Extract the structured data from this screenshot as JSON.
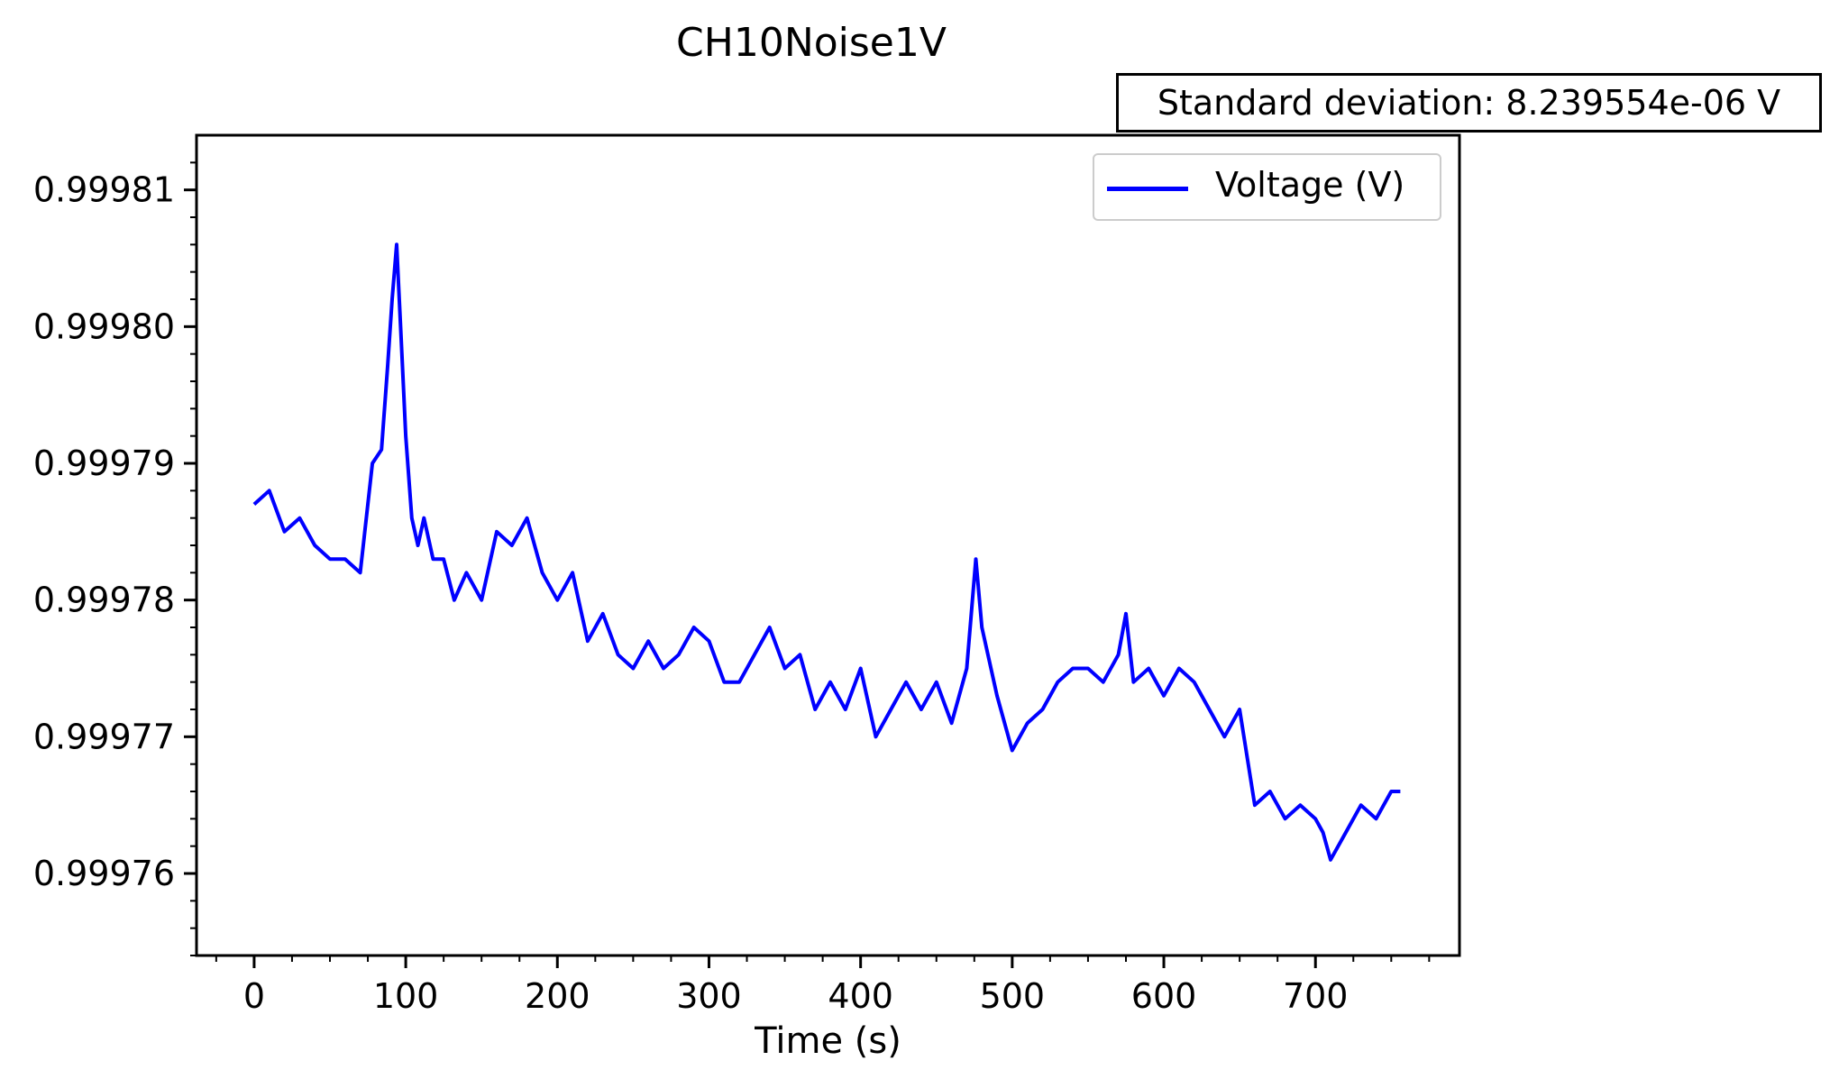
{
  "chart_data": {
    "type": "line",
    "title": "CH10Noise1V",
    "annotation": "Standard deviation: 8.239554e-06 V",
    "xlabel": "Time (s)",
    "ylabel": "",
    "xlim": [
      -38,
      795
    ],
    "ylim": [
      0.999754,
      0.999814
    ],
    "x_ticks": [
      0,
      100,
      200,
      300,
      400,
      500,
      600,
      700
    ],
    "x_tick_labels": [
      "0",
      "100",
      "200",
      "300",
      "400",
      "500",
      "600",
      "700"
    ],
    "y_ticks": [
      0.99976,
      0.99977,
      0.99978,
      0.99979,
      0.9998,
      0.99981
    ],
    "y_tick_labels": [
      "0.99976",
      "0.99977",
      "0.99978",
      "0.99979",
      "0.99980",
      "0.99981"
    ],
    "grid": false,
    "legend": "top-right",
    "series": [
      {
        "name": "Voltage (V)",
        "color": "#0000ff",
        "x": [
          0,
          10,
          20,
          30,
          40,
          50,
          60,
          70,
          78,
          84,
          88,
          91,
          94,
          97,
          100,
          104,
          108,
          112,
          118,
          125,
          132,
          140,
          150,
          160,
          170,
          180,
          190,
          200,
          210,
          220,
          230,
          240,
          250,
          260,
          270,
          280,
          290,
          300,
          310,
          320,
          330,
          340,
          350,
          360,
          370,
          380,
          390,
          400,
          410,
          420,
          430,
          440,
          450,
          460,
          470,
          476,
          480,
          490,
          500,
          510,
          520,
          530,
          540,
          550,
          560,
          570,
          575,
          580,
          590,
          600,
          610,
          620,
          630,
          640,
          650,
          660,
          670,
          680,
          690,
          700,
          705,
          710,
          720,
          730,
          740,
          750,
          756
        ],
        "y": [
          0.999787,
          0.999788,
          0.999785,
          0.999786,
          0.999784,
          0.999783,
          0.999783,
          0.999782,
          0.99979,
          0.999791,
          0.999797,
          0.999802,
          0.999806,
          0.999799,
          0.999792,
          0.999786,
          0.999784,
          0.999786,
          0.999783,
          0.999783,
          0.99978,
          0.999782,
          0.99978,
          0.999785,
          0.999784,
          0.999786,
          0.999782,
          0.99978,
          0.999782,
          0.999777,
          0.999779,
          0.999776,
          0.999775,
          0.999777,
          0.999775,
          0.999776,
          0.999778,
          0.999777,
          0.999774,
          0.999774,
          0.999776,
          0.999778,
          0.999775,
          0.999776,
          0.999772,
          0.999774,
          0.999772,
          0.999775,
          0.99977,
          0.999772,
          0.999774,
          0.999772,
          0.999774,
          0.999771,
          0.999775,
          0.999783,
          0.999778,
          0.999773,
          0.999769,
          0.999771,
          0.999772,
          0.999774,
          0.999775,
          0.999775,
          0.999774,
          0.999776,
          0.999779,
          0.999774,
          0.999775,
          0.999773,
          0.999775,
          0.999774,
          0.999772,
          0.99977,
          0.999772,
          0.999765,
          0.999766,
          0.999764,
          0.999765,
          0.999764,
          0.999763,
          0.999761,
          0.999763,
          0.999765,
          0.999764,
          0.999766,
          0.999766
        ]
      }
    ]
  }
}
